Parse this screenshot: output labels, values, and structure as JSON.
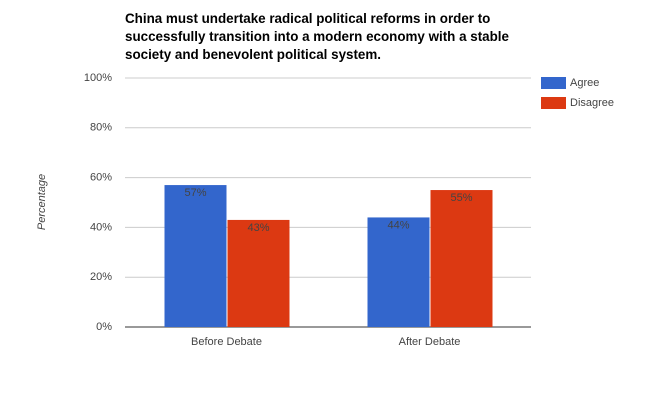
{
  "chart_data": {
    "type": "bar",
    "title": "China must undertake radical political reforms in order to successfully transition into a modern economy with a stable society and benevolent political system.",
    "y_label": "Percentage",
    "categories": [
      "Before Debate",
      "After Debate"
    ],
    "series": [
      {
        "name": "Agree",
        "color": "#3366cc",
        "values": [
          57,
          44
        ],
        "value_labels": [
          "57%",
          "44%"
        ]
      },
      {
        "name": "Disagree",
        "color": "#dc3912",
        "values": [
          43,
          55
        ],
        "value_labels": [
          "43%",
          "55%"
        ]
      }
    ],
    "ylim": [
      0,
      100
    ],
    "yticks": [
      {
        "value": 0,
        "label": "0%"
      },
      {
        "value": 20,
        "label": "20%"
      },
      {
        "value": 40,
        "label": "40%"
      },
      {
        "value": 60,
        "label": "60%"
      },
      {
        "value": 80,
        "label": "80%"
      },
      {
        "value": 100,
        "label": "100%"
      }
    ],
    "grid": true,
    "legend": "right"
  }
}
